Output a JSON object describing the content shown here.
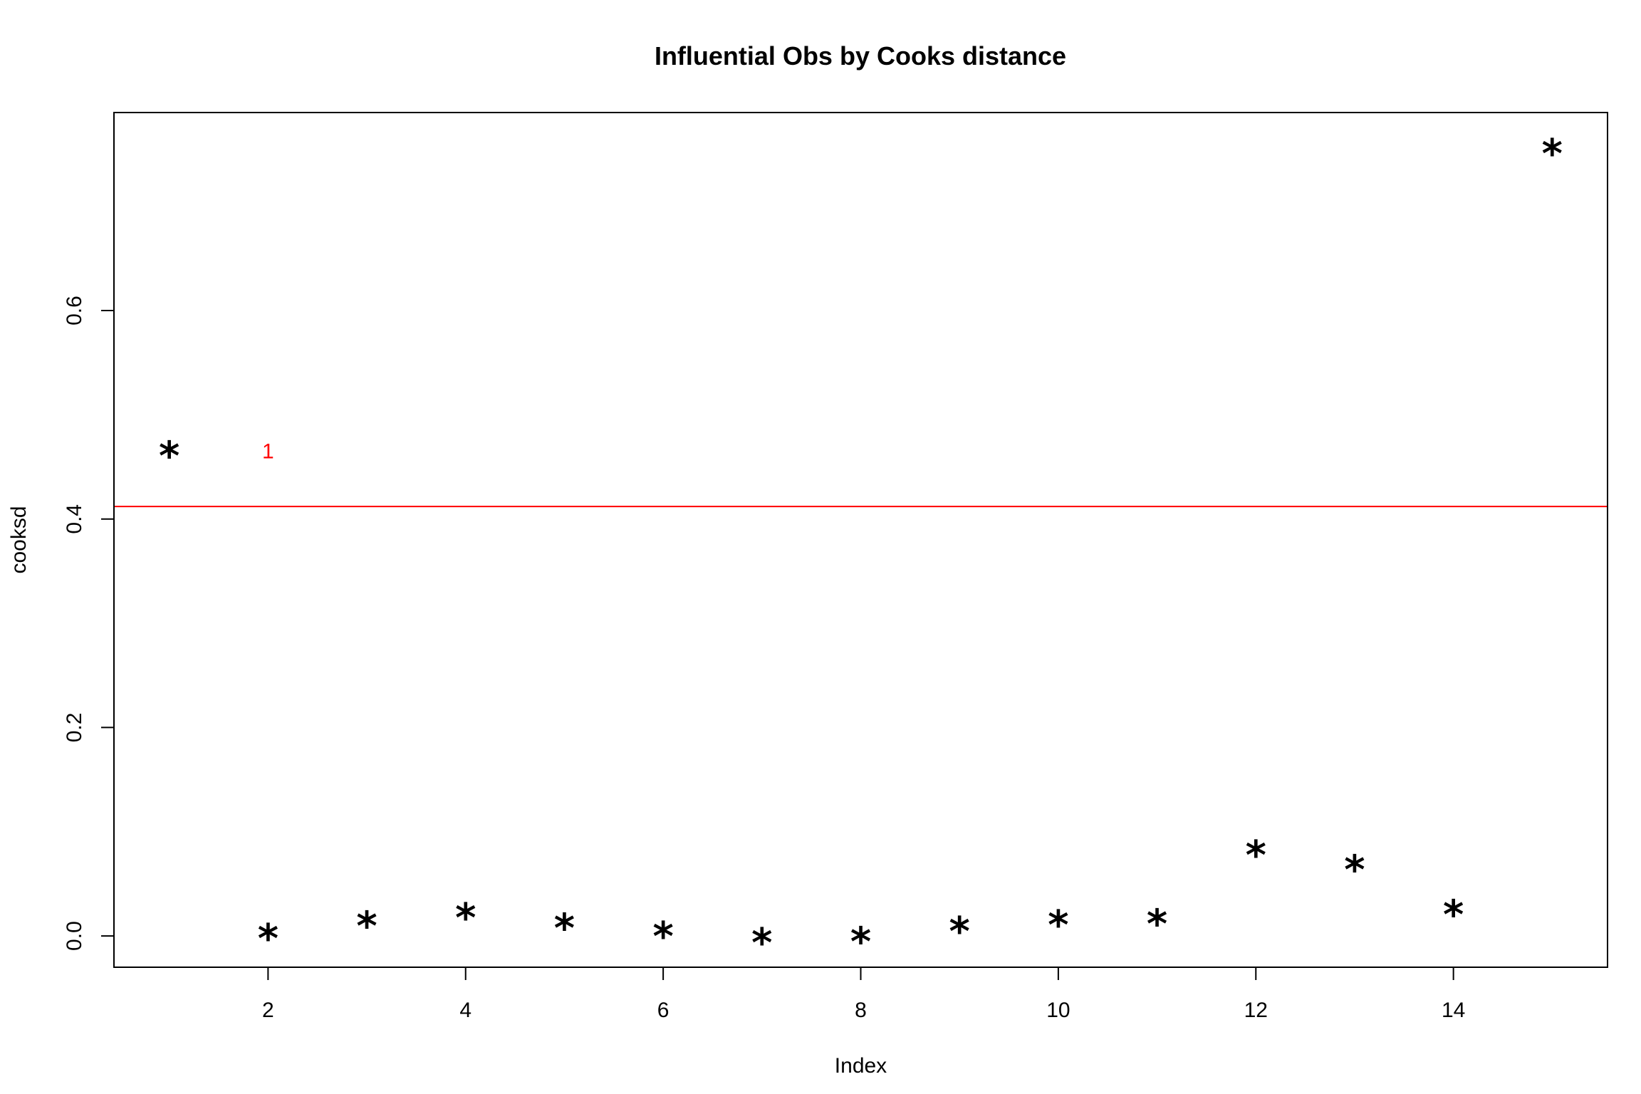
{
  "chart_data": {
    "type": "scatter",
    "title": "Influential Obs by Cooks distance",
    "xlabel": "Index",
    "ylabel": "cooksd",
    "point_symbol": "*",
    "x": [
      1,
      2,
      3,
      4,
      5,
      6,
      7,
      8,
      9,
      10,
      11,
      12,
      13,
      14,
      15
    ],
    "y": [
      0.465,
      0.002,
      0.014,
      0.022,
      0.012,
      0.004,
      -0.002,
      -0.001,
      0.009,
      0.015,
      0.016,
      0.082,
      0.068,
      0.025,
      0.755
    ],
    "xlim": [
      0.44,
      15.56
    ],
    "ylim": [
      -0.03,
      0.79
    ],
    "xticks": [
      2,
      4,
      6,
      8,
      10,
      12,
      14
    ],
    "yticks": [
      0.0,
      0.2,
      0.4,
      0.6
    ],
    "ytick_labels": [
      "0.0",
      "0.2",
      "0.4",
      "0.6"
    ],
    "threshold": {
      "value": 0.412,
      "color": "#ff0000"
    },
    "annotations": [
      {
        "x": 2,
        "y": 0.465,
        "text": "1",
        "color": "#ff0000"
      }
    ],
    "grid": false,
    "legend": "none"
  }
}
